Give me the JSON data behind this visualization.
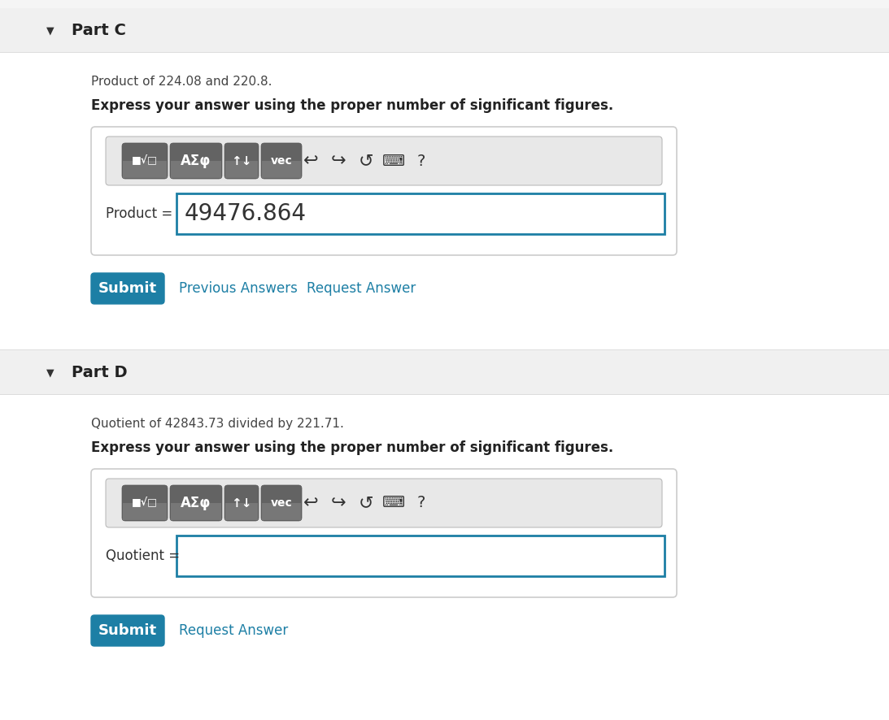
{
  "white": "#ffffff",
  "bg_light": "#f0f0f0",
  "header_bg": "#efefef",
  "teal_btn": "#1d7fa5",
  "link_color": "#1d7fa5",
  "dark_text": "#333333",
  "btn_gray": "#7a7a7a",
  "btn_gray_dark": "#5a5a5a",
  "toolbar_bg": "#e8e8e8",
  "border_light": "#cccccc",
  "border_teal": "#1d7fa5",
  "part_c_title": "Part C",
  "part_c_desc": "Product of 224.08 and 220.8.",
  "part_c_bold": "Express your answer using the proper number of significant figures.",
  "part_c_label": "Product =",
  "part_c_value": "49476.864",
  "part_d_title": "Part D",
  "part_d_desc": "Quotient of 42843.73 divided by 221.71.",
  "part_d_bold": "Express your answer using the proper number of significant figures.",
  "part_d_label": "Quotient =",
  "part_d_value": "",
  "submit_text": "Submit",
  "prev_answers_text": "Previous Answers",
  "request_answer_text": "Request Answer"
}
